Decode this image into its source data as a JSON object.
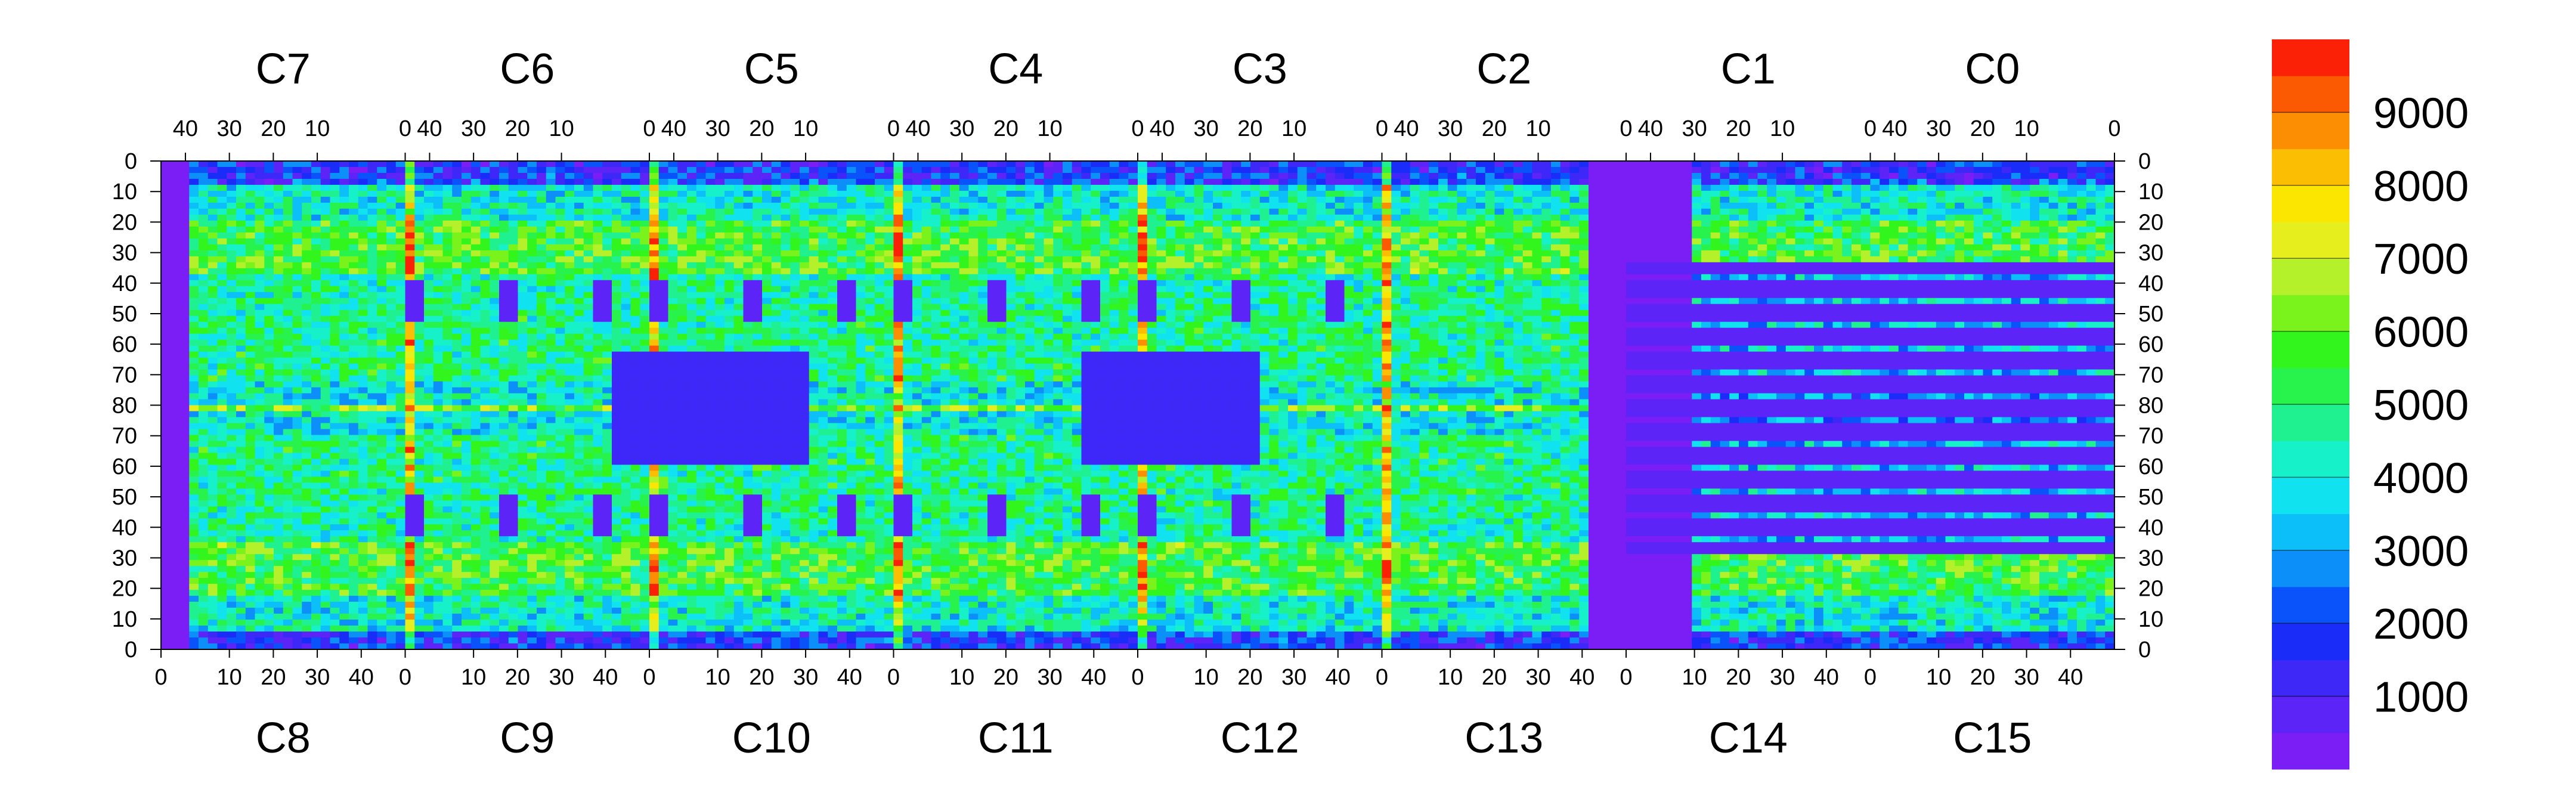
{
  "chart_data": {
    "type": "heatmap",
    "title": "",
    "top_chip_labels": [
      "C7",
      "C6",
      "C5",
      "C4",
      "C3",
      "C2",
      "C1",
      "C0"
    ],
    "bottom_chip_labels": [
      "C8",
      "C9",
      "C10",
      "C11",
      "C12",
      "C13",
      "C14",
      "C15"
    ],
    "top_chip_ticks": [
      "40",
      "30",
      "20",
      "10",
      "0"
    ],
    "bottom_chip_ticks": [
      "0",
      "10",
      "20",
      "30",
      "40"
    ],
    "row_ticks_left": [
      "0",
      "10",
      "20",
      "30",
      "40",
      "50",
      "60",
      "70",
      "80",
      "70",
      "60",
      "50",
      "40",
      "30",
      "20",
      "10",
      "0"
    ],
    "row_ticks_right": [
      "0",
      "10",
      "20",
      "30",
      "40",
      "50",
      "60",
      "70",
      "80",
      "70",
      "60",
      "50",
      "40",
      "30",
      "20",
      "10",
      "0"
    ],
    "colorbar": {
      "range": [
        0,
        10000
      ],
      "tick_labels": [
        "1000",
        "2000",
        "3000",
        "4000",
        "5000",
        "6000",
        "7000",
        "8000",
        "9000"
      ],
      "palette": [
        "#7a1ef5",
        "#5c24f7",
        "#3d28f8",
        "#1a2cf8",
        "#0a52f9",
        "#0c8ff9",
        "#0cbff8",
        "#10e3ef",
        "#17f1c9",
        "#20f190",
        "#28f34d",
        "#31f51c",
        "#7af31c",
        "#b4f12a",
        "#e6ee1d",
        "#fbe602",
        "#fbbe02",
        "#fb8e02",
        "#fb5a02",
        "#fa2106"
      ]
    },
    "notes": "Per-pixel count map of a 16-chip sensor module (2 rows x 8 chips); blue low-count regions in chip C13/C14 area, red hot columns at chip boundaries."
  }
}
